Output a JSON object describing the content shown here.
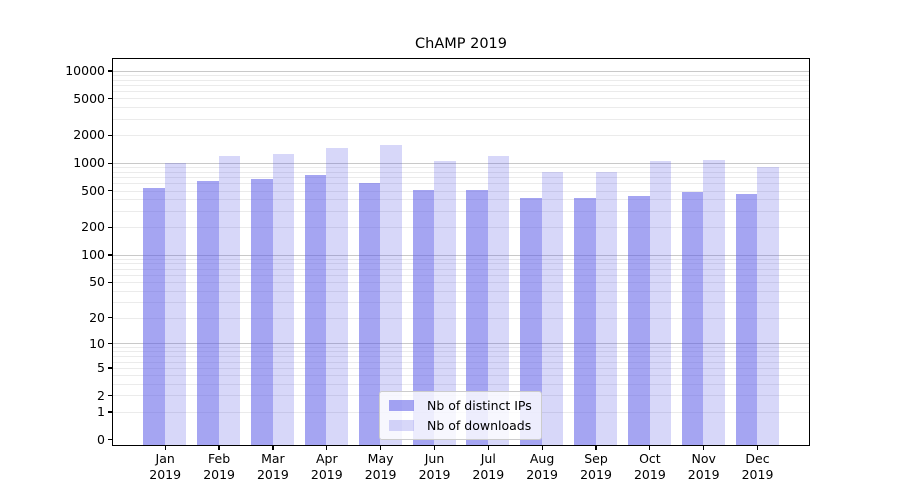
{
  "chart_data": {
    "type": "bar",
    "title": "ChAMP 2019",
    "xlabel": "",
    "ylabel": "",
    "yscale": "log1p",
    "ylim": [
      0,
      13000
    ],
    "grid": true,
    "legend_position": "lower center",
    "background_color": "#ffffff",
    "bar_base_color": "#5555e6",
    "y_ticks": [
      0,
      1,
      2,
      5,
      10,
      20,
      50,
      100,
      200,
      500,
      1000,
      2000,
      5000,
      10000
    ],
    "categories": [
      "Jan 2019",
      "Feb 2019",
      "Mar 2019",
      "Apr 2019",
      "May 2019",
      "Jun 2019",
      "Jul 2019",
      "Aug 2019",
      "Sep 2019",
      "Oct 2019",
      "Nov 2019",
      "Dec 2019"
    ],
    "x_tick_lines": [
      {
        "month": "Jan",
        "year": "2019"
      },
      {
        "month": "Feb",
        "year": "2019"
      },
      {
        "month": "Mar",
        "year": "2019"
      },
      {
        "month": "Apr",
        "year": "2019"
      },
      {
        "month": "May",
        "year": "2019"
      },
      {
        "month": "Jun",
        "year": "2019"
      },
      {
        "month": "Jul",
        "year": "2019"
      },
      {
        "month": "Aug",
        "year": "2019"
      },
      {
        "month": "Sep",
        "year": "2019"
      },
      {
        "month": "Oct",
        "year": "2019"
      },
      {
        "month": "Nov",
        "year": "2019"
      },
      {
        "month": "Dec",
        "year": "2019"
      }
    ],
    "series": [
      {
        "name": "Nb of distinct IPs",
        "color": "#5555e6",
        "alpha": 0.53,
        "values": [
          535,
          630,
          670,
          745,
          600,
          505,
          510,
          410,
          415,
          435,
          480,
          460
        ]
      },
      {
        "name": "Nb of downloads",
        "color": "#5555e6",
        "alpha": 0.235,
        "values": [
          1000,
          1200,
          1260,
          1450,
          1550,
          1040,
          1200,
          790,
          795,
          1055,
          1080,
          890
        ]
      }
    ]
  }
}
